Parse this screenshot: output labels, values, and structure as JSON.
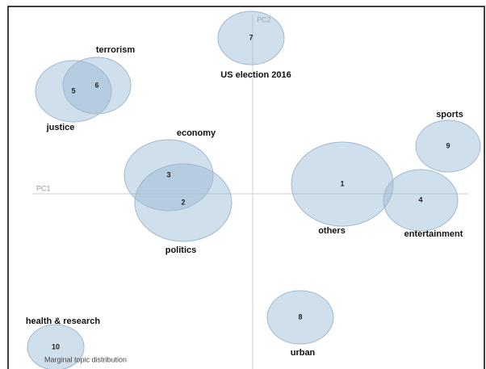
{
  "axes": {
    "x": "PC1",
    "y": "PC2"
  },
  "caption": "Marginal topic distribution",
  "nodes": [
    {
      "id": "1",
      "label": "others"
    },
    {
      "id": "2",
      "label": "politics"
    },
    {
      "id": "3",
      "label": "economy"
    },
    {
      "id": "4",
      "label": "entertainment"
    },
    {
      "id": "5",
      "label": "justice"
    },
    {
      "id": "6",
      "label": "terrorism"
    },
    {
      "id": "7",
      "label": "US election 2016"
    },
    {
      "id": "8",
      "label": "urban"
    },
    {
      "id": "9",
      "label": "sports"
    },
    {
      "id": "10",
      "label": "health & research"
    }
  ]
}
